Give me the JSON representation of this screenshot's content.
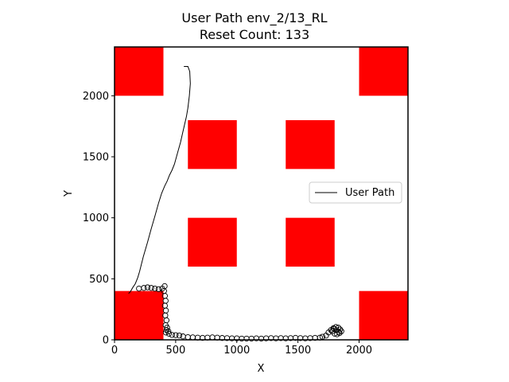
{
  "chart_data": {
    "type": "line",
    "title": "User Path env_2/13_RL",
    "subtitle": "Reset Count: 133",
    "xlabel": "X",
    "ylabel": "Y",
    "xlim": [
      0,
      2400
    ],
    "ylim": [
      0,
      2400
    ],
    "xticks": [
      0,
      500,
      1000,
      1500,
      2000
    ],
    "yticks": [
      0,
      500,
      1000,
      1500,
      2000
    ],
    "xtick_labels": [
      "0",
      "500",
      "1000",
      "1500",
      "2000"
    ],
    "ytick_labels": [
      "0",
      "500",
      "1000",
      "1500",
      "2000"
    ],
    "grid": false,
    "legend": {
      "position": "right",
      "entries": [
        "User Path"
      ]
    },
    "obstacle_color": "#ff0000",
    "path_color": "#000000",
    "obstacles": [
      {
        "x0": 0,
        "y0": 2000,
        "x1": 400,
        "y1": 2400
      },
      {
        "x0": 2000,
        "y0": 2000,
        "x1": 2400,
        "y1": 2400
      },
      {
        "x0": 600,
        "y0": 1400,
        "x1": 1000,
        "y1": 1800
      },
      {
        "x0": 1400,
        "y0": 1400,
        "x1": 1800,
        "y1": 1800
      },
      {
        "x0": 600,
        "y0": 600,
        "x1": 1000,
        "y1": 1000
      },
      {
        "x0": 1400,
        "y0": 600,
        "x1": 1800,
        "y1": 1000
      },
      {
        "x0": 0,
        "y0": 0,
        "x1": 400,
        "y1": 400
      },
      {
        "x0": 2000,
        "y0": 0,
        "x1": 2400,
        "y1": 400
      }
    ],
    "series": [
      {
        "name": "User Path",
        "points": [
          [
            567,
            2240
          ],
          [
            600,
            2240
          ],
          [
            615,
            2200
          ],
          [
            620,
            2100
          ],
          [
            612,
            2000
          ],
          [
            600,
            1900
          ],
          [
            588,
            1830
          ],
          [
            572,
            1760
          ],
          [
            558,
            1700
          ],
          [
            540,
            1620
          ],
          [
            515,
            1530
          ],
          [
            490,
            1440
          ],
          [
            470,
            1390
          ],
          [
            450,
            1350
          ],
          [
            430,
            1300
          ],
          [
            410,
            1260
          ],
          [
            385,
            1200
          ],
          [
            360,
            1120
          ],
          [
            332,
            1020
          ],
          [
            300,
            910
          ],
          [
            270,
            800
          ],
          [
            235,
            680
          ],
          [
            205,
            560
          ],
          [
            190,
            510
          ],
          [
            170,
            460
          ],
          [
            150,
            430
          ],
          [
            130,
            395
          ],
          [
            115,
            380
          ]
        ]
      }
    ],
    "reset_points": [
      [
        200,
        420
      ],
      [
        240,
        425
      ],
      [
        270,
        430
      ],
      [
        300,
        425
      ],
      [
        330,
        420
      ],
      [
        360,
        415
      ],
      [
        390,
        420
      ],
      [
        410,
        440
      ],
      [
        405,
        400
      ],
      [
        412,
        360
      ],
      [
        418,
        320
      ],
      [
        412,
        280
      ],
      [
        420,
        240
      ],
      [
        415,
        200
      ],
      [
        425,
        160
      ],
      [
        418,
        120
      ],
      [
        430,
        100
      ],
      [
        425,
        80
      ],
      [
        440,
        70
      ],
      [
        420,
        60
      ],
      [
        445,
        50
      ],
      [
        470,
        40
      ],
      [
        500,
        38
      ],
      [
        530,
        35
      ],
      [
        560,
        28
      ],
      [
        600,
        22
      ],
      [
        640,
        20
      ],
      [
        680,
        18
      ],
      [
        720,
        16
      ],
      [
        760,
        18
      ],
      [
        800,
        20
      ],
      [
        840,
        18
      ],
      [
        880,
        15
      ],
      [
        920,
        14
      ],
      [
        960,
        12
      ],
      [
        1000,
        12
      ],
      [
        1040,
        10
      ],
      [
        1080,
        10
      ],
      [
        1120,
        10
      ],
      [
        1160,
        12
      ],
      [
        1200,
        10
      ],
      [
        1240,
        12
      ],
      [
        1280,
        14
      ],
      [
        1320,
        12
      ],
      [
        1360,
        14
      ],
      [
        1400,
        12
      ],
      [
        1440,
        14
      ],
      [
        1480,
        16
      ],
      [
        1520,
        14
      ],
      [
        1560,
        12
      ],
      [
        1600,
        14
      ],
      [
        1640,
        16
      ],
      [
        1680,
        18
      ],
      [
        1700,
        25
      ],
      [
        1730,
        35
      ],
      [
        1750,
        60
      ],
      [
        1770,
        80
      ],
      [
        1790,
        95
      ],
      [
        1810,
        105
      ],
      [
        1830,
        100
      ],
      [
        1845,
        85
      ],
      [
        1855,
        70
      ],
      [
        1840,
        55
      ],
      [
        1820,
        45
      ],
      [
        1800,
        50
      ],
      [
        1780,
        70
      ],
      [
        1795,
        90
      ],
      [
        1815,
        80
      ],
      [
        1835,
        65
      ]
    ]
  }
}
